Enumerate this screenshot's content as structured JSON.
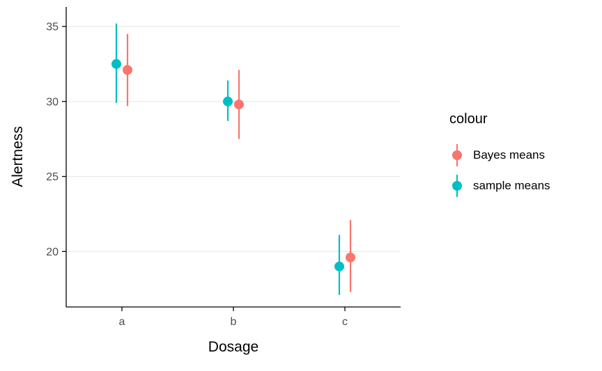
{
  "figure": {
    "xlabel": "Dosage",
    "ylabel": "Alertness"
  },
  "legend": {
    "title": "colour",
    "entries": [
      {
        "label": "Bayes means",
        "color": "#F8766D"
      },
      {
        "label": "sample means",
        "color": "#00BFC4"
      }
    ]
  },
  "chart_data": {
    "type": "scatter",
    "subtype": "pointrange",
    "title": "",
    "xlabel": "Dosage",
    "ylabel": "Alertness",
    "categories": [
      "a",
      "b",
      "c"
    ],
    "series": [
      {
        "name": "sample means",
        "color": "#00BFC4",
        "dodge": -8,
        "values": [
          32.5,
          30.0,
          19.0
        ],
        "lower": [
          29.9,
          28.7,
          17.1
        ],
        "upper": [
          35.2,
          31.4,
          21.1
        ]
      },
      {
        "name": "Bayes means",
        "color": "#F8766D",
        "dodge": 8,
        "values": [
          32.1,
          29.8,
          19.6
        ],
        "lower": [
          29.7,
          27.5,
          17.3
        ],
        "upper": [
          34.5,
          32.1,
          22.1
        ]
      }
    ],
    "ylim": [
      16.3,
      36.3
    ],
    "yticks": [
      20,
      25,
      30,
      35
    ],
    "grid": "horizontal-major",
    "legend_position": "right",
    "legend_title": "colour"
  },
  "style": {
    "background": "#FFFFFF",
    "gridline_color": "#EBEBEB",
    "axis_color": "#000000",
    "tick_label_color": "#4D4D4D",
    "point_radius": 7,
    "errorbar_width": 2.2
  }
}
